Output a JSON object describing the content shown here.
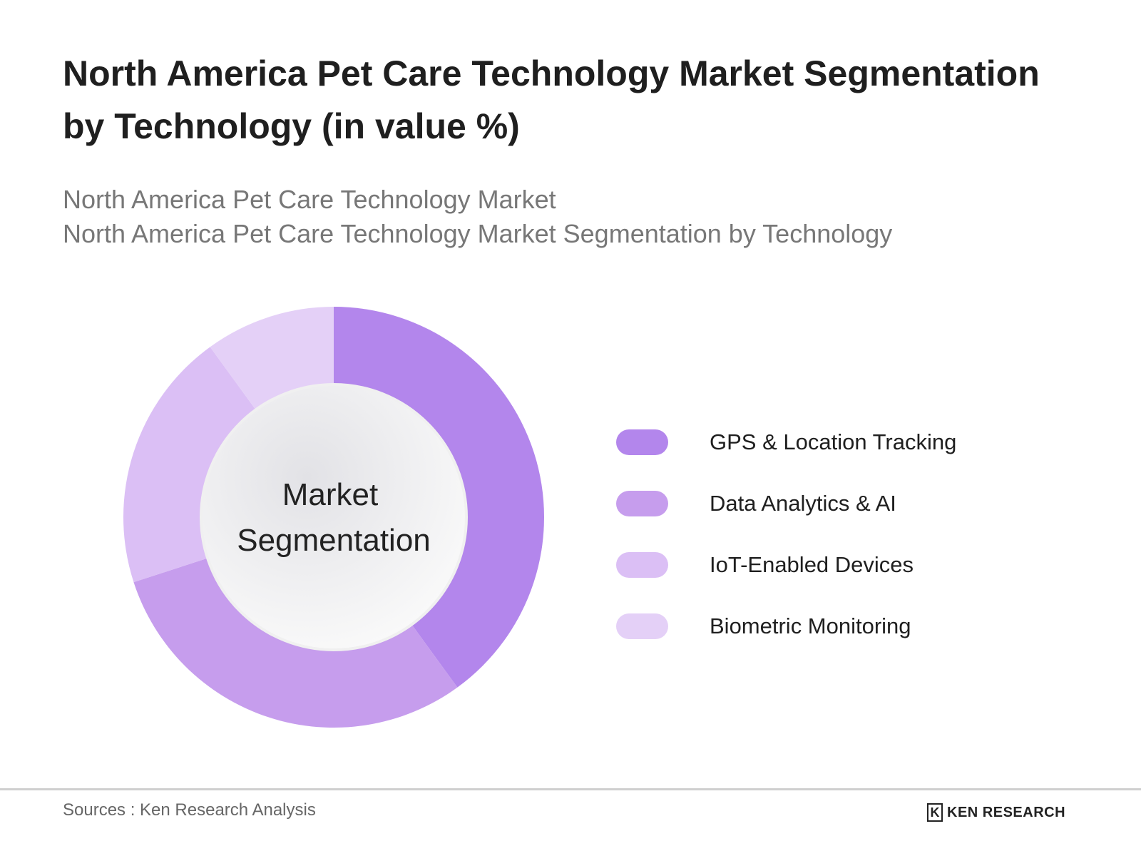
{
  "title": "North America Pet Care Technology Market Segmentation by Technology (in value %)",
  "subtitle_lines": [
    "North America Pet Care Technology Market",
    "North America Pet Care Technology Market Segmentation by Technology"
  ],
  "chart_data": {
    "type": "pie",
    "variant": "donut",
    "center_label": [
      "Market",
      "Segmentation"
    ],
    "categories": [
      "GPS & Location Tracking",
      "Data Analytics & AI",
      "IoT-Enabled Devices",
      "Biometric Monitoring"
    ],
    "values": [
      40,
      30,
      20,
      10
    ],
    "colors": [
      "#b386ec",
      "#c69ded",
      "#dbbff5",
      "#e4d0f7"
    ],
    "legend_position": "right"
  },
  "footer": {
    "source": "Sources : Ken Research Analysis",
    "logo": "KEN RESEARCH"
  }
}
